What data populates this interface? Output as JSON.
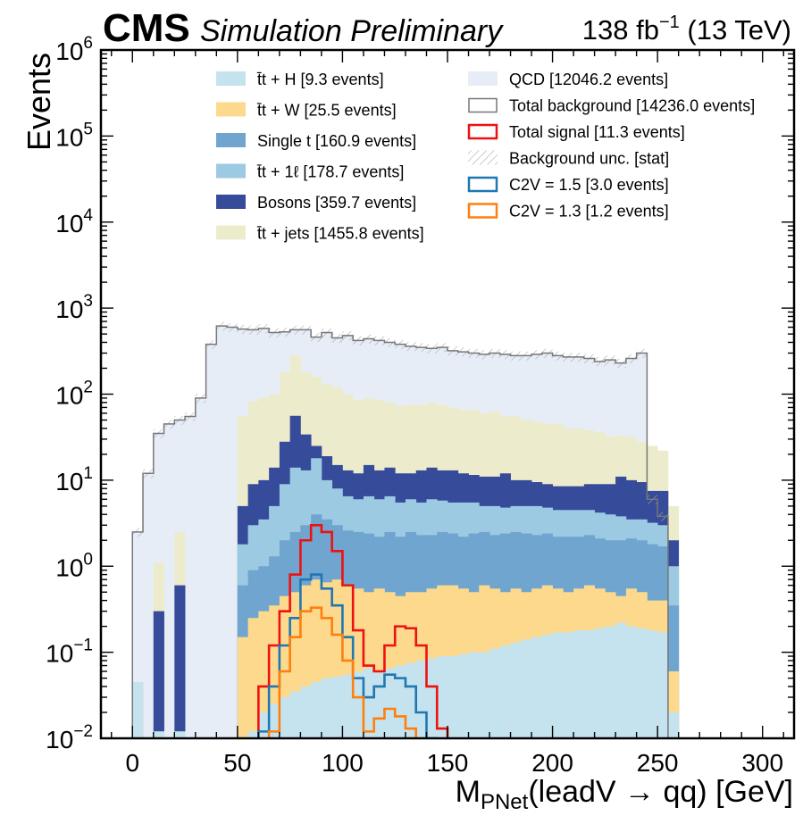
{
  "header": {
    "experiment": "CMS",
    "status": "Simulation Preliminary",
    "lumi_value": "138 fb",
    "lumi_exp": "−1",
    "lumi_energy": " (13 TeV)"
  },
  "axes": {
    "xlabel_main": "M",
    "xlabel_sub": "PNet",
    "xlabel_rest": "(leadV → qq) [GeV]",
    "ylabel": "Events",
    "x_ticks": [
      "0",
      "50",
      "100",
      "150",
      "200",
      "250",
      "300"
    ],
    "y_tick_base": "10",
    "y_tick_exps": [
      "−2",
      "−1",
      "0",
      "1",
      "2",
      "3",
      "4",
      "5",
      "6"
    ]
  },
  "legend": {
    "left": [
      {
        "label": "t̄t + H [9.3 events]",
        "color": "#c5e3ee",
        "kind": "fill"
      },
      {
        "label": "t̄t + W [25.5 events]",
        "color": "#fcd98d",
        "kind": "fill"
      },
      {
        "label": "Single t [160.9 events]",
        "color": "#6fa5cf",
        "kind": "fill"
      },
      {
        "label": "t̄t + 1ℓ [178.7 events]",
        "color": "#9ccae2",
        "kind": "fill"
      },
      {
        "label": "Bosons [359.7 events]",
        "color": "#364b9a",
        "kind": "fill"
      },
      {
        "label": "t̄t + jets [1455.8 events]",
        "color": "#ececcd",
        "kind": "fill"
      }
    ],
    "right": [
      {
        "label": "QCD [12046.2 events]",
        "color": "#e6edf7",
        "kind": "fill"
      },
      {
        "label": "Total background [14236.0 events]",
        "color": "#777777",
        "kind": "outline"
      },
      {
        "label": "Total signal [11.3 events]",
        "color": "#ee1111",
        "kind": "outline"
      },
      {
        "label": "Background unc. [stat]",
        "color": "#bbbbbb",
        "kind": "hatch"
      },
      {
        "label": "C2V = 1.5 [3.0 events]",
        "color": "#1f77b4",
        "kind": "outline"
      },
      {
        "label": "C2V = 1.3 [1.2 events]",
        "color": "#ff7f0e",
        "kind": "outline"
      }
    ]
  },
  "chart_data": {
    "type": "bar",
    "subtype": "stacked_step_histogram",
    "y_scale": "log",
    "xlim": [
      -15,
      315
    ],
    "ylim": [
      0.01,
      1000000
    ],
    "bin_edges_start": 0,
    "bin_width": 5,
    "n_bins": 53,
    "stack_order_bottom_to_top": [
      "ttH",
      "ttW",
      "Single t",
      "tt1l",
      "Bosons",
      "ttjets",
      "QCD"
    ],
    "stack_colors": [
      "#c5e3ee",
      "#fcd98d",
      "#6fa5cf",
      "#9ccae2",
      "#364b9a",
      "#ececcd",
      "#e6edf7"
    ],
    "cumulative_stack_tops": {
      "ttH": [
        0.045,
        0,
        0.012,
        0,
        0.012,
        0,
        0,
        0,
        0,
        0,
        0,
        0.012,
        0.02,
        0.025,
        0.03,
        0.035,
        0.04,
        0.045,
        0.05,
        0.052,
        0.055,
        0.06,
        0.065,
        0.06,
        0.065,
        0.07,
        0.075,
        0.08,
        0.085,
        0.09,
        0.09,
        0.095,
        0.1,
        0.1,
        0.11,
        0.12,
        0.13,
        0.14,
        0.15,
        0.16,
        0.17,
        0.17,
        0.18,
        0.18,
        0.19,
        0.2,
        0.22,
        0.2,
        0.19,
        0.18,
        0.17,
        0.02,
        0
      ],
      "ttW": [
        0.045,
        0,
        0.012,
        0,
        0.012,
        0,
        0,
        0,
        0,
        0,
        0.15,
        0.25,
        0.3,
        0.35,
        0.45,
        0.5,
        0.6,
        0.7,
        0.65,
        0.7,
        0.6,
        0.55,
        0.5,
        0.55,
        0.5,
        0.45,
        0.5,
        0.5,
        0.55,
        0.6,
        0.6,
        0.55,
        0.5,
        0.6,
        0.55,
        0.5,
        0.55,
        0.5,
        0.55,
        0.6,
        0.55,
        0.5,
        0.55,
        0.6,
        0.55,
        0.5,
        0.45,
        0.55,
        0.5,
        0.4,
        0.4,
        0.06,
        0
      ],
      "Single t": [
        0.045,
        0,
        0.012,
        0,
        0.012,
        0,
        0,
        0,
        0,
        0,
        0.6,
        0.9,
        1.0,
        1.3,
        2.0,
        2.5,
        3.0,
        4.0,
        3.5,
        3.0,
        2.6,
        2.5,
        2.4,
        2.2,
        2.5,
        2.2,
        2.5,
        2.3,
        2.3,
        2.5,
        2.4,
        2.2,
        2.4,
        2.5,
        2.3,
        2.4,
        2.5,
        2.4,
        2.3,
        2.4,
        2.2,
        2.2,
        2.2,
        2.3,
        2.1,
        2.0,
        2.0,
        2.1,
        2.0,
        1.8,
        1.7,
        0.35,
        0
      ],
      "tt1l": [
        0.045,
        0,
        0.012,
        0,
        0.012,
        0,
        0,
        0,
        0,
        0,
        1.8,
        3.0,
        3.5,
        5.0,
        9.0,
        14.0,
        13.0,
        18.0,
        10.0,
        8.0,
        6.5,
        6.0,
        6.5,
        6.0,
        6.5,
        5.5,
        6.0,
        5.5,
        6.0,
        5.8,
        5.5,
        5.5,
        5.5,
        5.0,
        5.0,
        4.8,
        5.0,
        5.0,
        5.0,
        4.8,
        4.5,
        4.5,
        4.5,
        4.5,
        4.2,
        4.0,
        3.8,
        3.5,
        3.5,
        3.2,
        3.0,
        1.0,
        0
      ],
      "Bosons": [
        0.045,
        0,
        0.3,
        0,
        0.6,
        0,
        0,
        0,
        0,
        0,
        5.0,
        9.0,
        10.0,
        14.0,
        28.0,
        56.0,
        34.0,
        25.0,
        19.0,
        15.0,
        13.0,
        12.0,
        15.0,
        13.0,
        14.0,
        12.0,
        12.0,
        13.0,
        14.0,
        13.0,
        13.0,
        12.0,
        11.5,
        11.0,
        11.0,
        12.0,
        10.0,
        10.0,
        9.5,
        9.0,
        8.5,
        8.5,
        8.5,
        9.0,
        9.0,
        9.0,
        11.0,
        10.0,
        9.5,
        7.5,
        7.5,
        2.0,
        0
      ],
      "ttjets": [
        0.045,
        0,
        1.1,
        0,
        2.5,
        0,
        0,
        0,
        0,
        0,
        55.0,
        82.0,
        90.0,
        100.0,
        180.0,
        280.0,
        180.0,
        160.0,
        130.0,
        120.0,
        100.0,
        85.0,
        90.0,
        85.0,
        80.0,
        72.0,
        75.0,
        75.0,
        80.0,
        75.0,
        70.0,
        65.0,
        65.0,
        60.0,
        62.0,
        55.0,
        55.0,
        50.0,
        48.0,
        45.0,
        45.0,
        40.0,
        40.0,
        38.0,
        36.0,
        32.0,
        33.0,
        32.0,
        28.0,
        25.0,
        22.0,
        5.0,
        0
      ],
      "QCD": [
        2.5,
        12,
        35,
        45,
        50,
        55,
        90,
        380,
        620,
        600,
        570,
        560,
        580,
        520,
        530,
        560,
        560,
        460,
        520,
        450,
        480,
        420,
        440,
        420,
        400,
        380,
        360,
        350,
        340,
        350,
        320,
        310,
        300,
        290,
        300,
        290,
        280,
        280,
        290,
        300,
        280,
        270,
        270,
        260,
        240,
        250,
        230,
        260,
        300,
        6,
        3.8,
        0,
        0
      ]
    },
    "signal_series": [
      {
        "name": "Total signal",
        "color": "#ee1111",
        "values": [
          0,
          0,
          0,
          0,
          0,
          0,
          0,
          0,
          0,
          0,
          0,
          0,
          0.04,
          0.12,
          0.3,
          0.8,
          2.0,
          3.0,
          2.5,
          1.5,
          0.6,
          0.18,
          0.07,
          0.06,
          0.12,
          0.2,
          0.19,
          0.12,
          0.04,
          0.013,
          0,
          0,
          0,
          0,
          0,
          0,
          0,
          0,
          0,
          0,
          0,
          0,
          0,
          0,
          0,
          0,
          0,
          0,
          0,
          0,
          0,
          0,
          0
        ]
      },
      {
        "name": "C2V = 1.5",
        "color": "#1f77b4",
        "values": [
          0,
          0,
          0,
          0,
          0,
          0,
          0,
          0,
          0,
          0,
          0,
          0,
          0.012,
          0.04,
          0.12,
          0.25,
          0.7,
          0.8,
          0.55,
          0.35,
          0.15,
          0.05,
          0.03,
          0.04,
          0.055,
          0.05,
          0.04,
          0.02,
          0.01,
          0,
          0,
          0,
          0,
          0,
          0,
          0,
          0,
          0,
          0,
          0,
          0,
          0,
          0,
          0,
          0,
          0,
          0,
          0,
          0,
          0,
          0,
          0,
          0
        ]
      },
      {
        "name": "C2V = 1.3",
        "color": "#ff7f0e",
        "values": [
          0,
          0,
          0,
          0,
          0,
          0,
          0,
          0,
          0,
          0,
          0,
          0,
          0,
          0.012,
          0.06,
          0.15,
          0.3,
          0.33,
          0.25,
          0.16,
          0.08,
          0.03,
          0.012,
          0.017,
          0.022,
          0.018,
          0.013,
          0.008,
          0,
          0,
          0,
          0,
          0,
          0,
          0,
          0,
          0,
          0,
          0,
          0,
          0,
          0,
          0,
          0,
          0,
          0,
          0,
          0,
          0,
          0,
          0,
          0,
          0
        ]
      }
    ],
    "total_background": {
      "name": "Total background",
      "color": "#777777"
    },
    "background_uncertainty": {
      "name": "Background unc. [stat]",
      "relative": 0.12
    },
    "grid": false,
    "legend_position": "top"
  }
}
